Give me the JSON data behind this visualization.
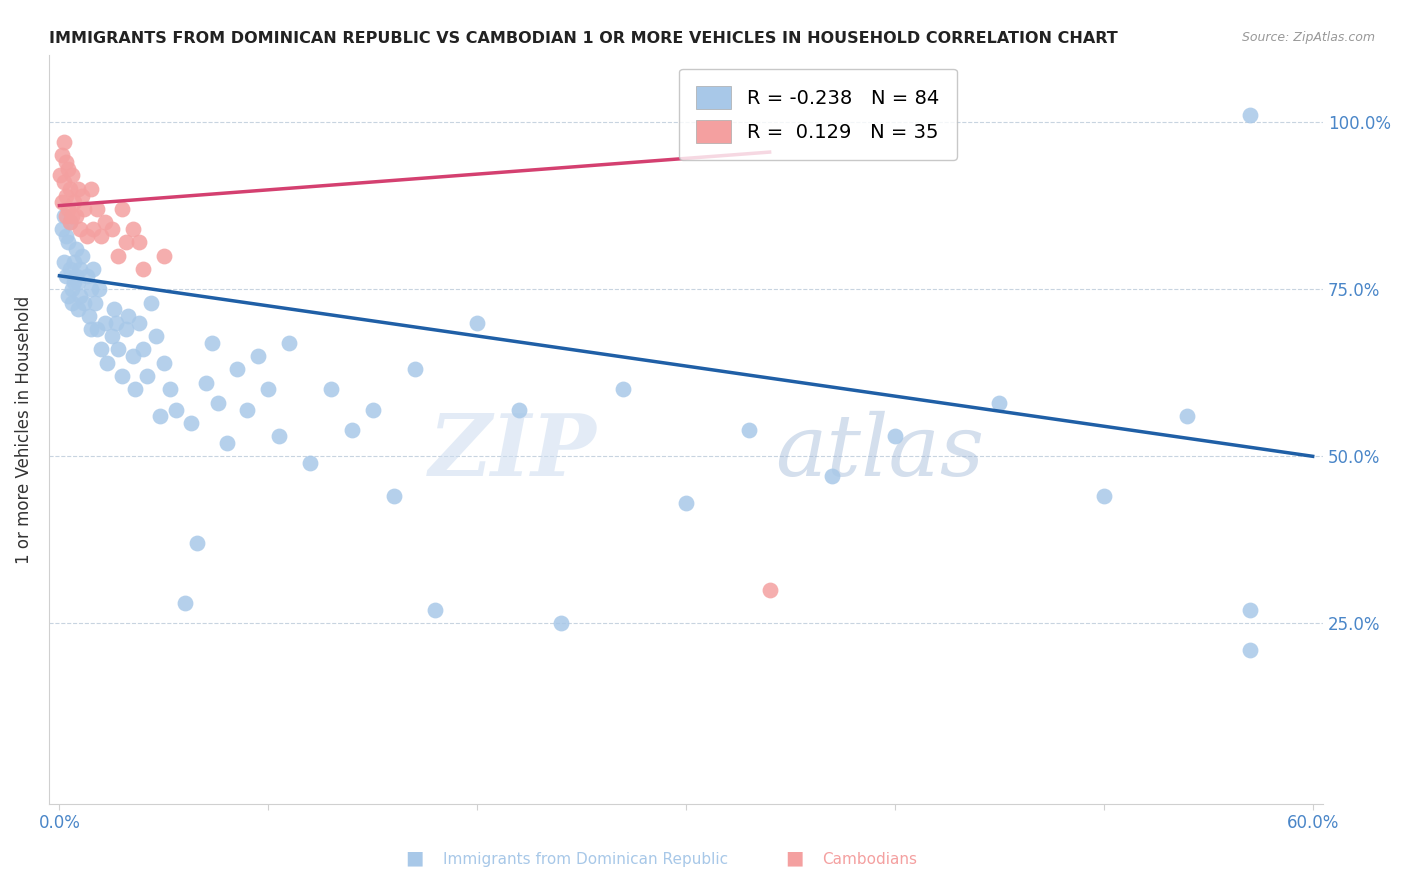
{
  "title": "IMMIGRANTS FROM DOMINICAN REPUBLIC VS CAMBODIAN 1 OR MORE VEHICLES IN HOUSEHOLD CORRELATION CHART",
  "source": "Source: ZipAtlas.com",
  "ylabel": "1 or more Vehicles in Household",
  "legend_blue_r": "-0.238",
  "legend_blue_n": "84",
  "legend_pink_r": "0.129",
  "legend_pink_n": "35",
  "blue_color": "#a8c8e8",
  "pink_color": "#f4a0a0",
  "blue_line_color": "#1f5fa6",
  "pink_line_color": "#d44070",
  "blue_label": "Immigrants from Dominican Republic",
  "pink_label": "Cambodians",
  "watermark_zip": "ZIP",
  "watermark_atlas": "atlas",
  "xmin": 0.0,
  "xmax": 0.6,
  "ymin": 0.0,
  "ymax": 1.1,
  "blue_line_x0": 0.0,
  "blue_line_y0": 0.77,
  "blue_line_x1": 0.6,
  "blue_line_y1": 0.5,
  "pink_line_x0": 0.0,
  "pink_line_y0": 0.875,
  "pink_line_x1": 0.34,
  "pink_line_y1": 0.955,
  "blue_x": [
    0.001,
    0.002,
    0.002,
    0.003,
    0.003,
    0.004,
    0.004,
    0.005,
    0.005,
    0.006,
    0.006,
    0.007,
    0.007,
    0.008,
    0.008,
    0.009,
    0.009,
    0.01,
    0.01,
    0.011,
    0.012,
    0.013,
    0.014,
    0.015,
    0.015,
    0.016,
    0.017,
    0.018,
    0.019,
    0.02,
    0.022,
    0.023,
    0.025,
    0.026,
    0.027,
    0.028,
    0.03,
    0.032,
    0.033,
    0.035,
    0.036,
    0.038,
    0.04,
    0.042,
    0.044,
    0.046,
    0.048,
    0.05,
    0.053,
    0.056,
    0.06,
    0.063,
    0.066,
    0.07,
    0.073,
    0.076,
    0.08,
    0.085,
    0.09,
    0.095,
    0.1,
    0.105,
    0.11,
    0.12,
    0.13,
    0.14,
    0.15,
    0.16,
    0.17,
    0.18,
    0.2,
    0.22,
    0.24,
    0.27,
    0.3,
    0.33,
    0.37,
    0.4,
    0.45,
    0.5,
    0.54,
    0.57,
    0.57,
    0.57
  ],
  "blue_y": [
    0.84,
    0.79,
    0.86,
    0.83,
    0.77,
    0.82,
    0.74,
    0.85,
    0.78,
    0.75,
    0.73,
    0.76,
    0.79,
    0.77,
    0.81,
    0.76,
    0.72,
    0.78,
    0.74,
    0.8,
    0.73,
    0.77,
    0.71,
    0.75,
    0.69,
    0.78,
    0.73,
    0.69,
    0.75,
    0.66,
    0.7,
    0.64,
    0.68,
    0.72,
    0.7,
    0.66,
    0.62,
    0.69,
    0.71,
    0.65,
    0.6,
    0.7,
    0.66,
    0.62,
    0.73,
    0.68,
    0.56,
    0.64,
    0.6,
    0.57,
    0.28,
    0.55,
    0.37,
    0.61,
    0.67,
    0.58,
    0.52,
    0.63,
    0.57,
    0.65,
    0.6,
    0.53,
    0.67,
    0.49,
    0.6,
    0.54,
    0.57,
    0.44,
    0.63,
    0.27,
    0.7,
    0.57,
    0.25,
    0.6,
    0.43,
    0.54,
    0.47,
    0.53,
    0.58,
    0.44,
    0.56,
    0.27,
    0.21,
    1.01
  ],
  "pink_x": [
    0.0005,
    0.001,
    0.001,
    0.002,
    0.002,
    0.003,
    0.003,
    0.003,
    0.004,
    0.004,
    0.005,
    0.005,
    0.006,
    0.006,
    0.007,
    0.008,
    0.009,
    0.01,
    0.011,
    0.012,
    0.013,
    0.015,
    0.016,
    0.018,
    0.02,
    0.022,
    0.025,
    0.028,
    0.03,
    0.032,
    0.035,
    0.038,
    0.04,
    0.05,
    0.34
  ],
  "pink_y": [
    0.92,
    0.95,
    0.88,
    0.91,
    0.97,
    0.89,
    0.94,
    0.86,
    0.93,
    0.87,
    0.85,
    0.9,
    0.92,
    0.86,
    0.88,
    0.86,
    0.9,
    0.84,
    0.89,
    0.87,
    0.83,
    0.9,
    0.84,
    0.87,
    0.83,
    0.85,
    0.84,
    0.8,
    0.87,
    0.82,
    0.84,
    0.82,
    0.78,
    0.8,
    0.3
  ]
}
